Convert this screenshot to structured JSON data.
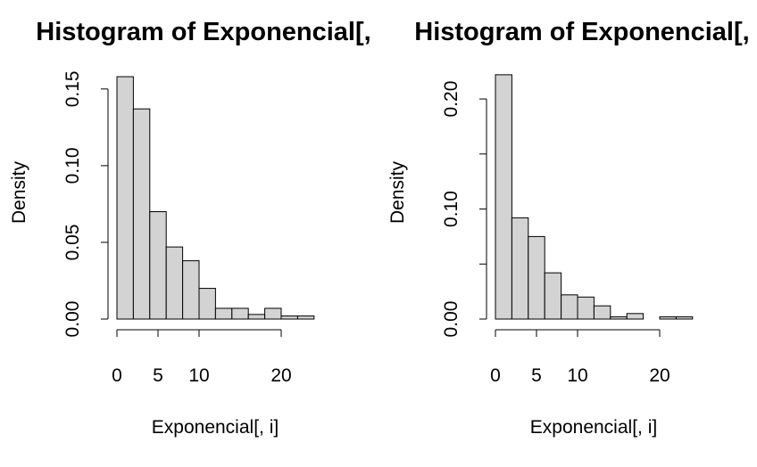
{
  "chart_data": [
    {
      "type": "bar",
      "subtype": "histogram",
      "title": "Histogram of Exponencial[,",
      "xlabel": "Exponencial[, i]",
      "ylabel": "Density",
      "bin_edges": [
        0,
        2,
        4,
        6,
        8,
        10,
        12,
        14,
        16,
        18,
        20,
        22,
        24
      ],
      "values": [
        0.158,
        0.137,
        0.07,
        0.047,
        0.038,
        0.02,
        0.007,
        0.007,
        0.003,
        0.007,
        0.002,
        0.002
      ],
      "xticks": [
        0,
        5,
        10,
        20
      ],
      "xtick_labels": [
        "0",
        "5",
        "10",
        "20"
      ],
      "yticks": [
        0.0,
        0.05,
        0.1,
        0.15
      ],
      "ytick_labels": [
        "0.00",
        "0.05",
        "0.10",
        "0.15"
      ],
      "ylim": [
        0,
        0.165
      ],
      "grid": false
    },
    {
      "type": "bar",
      "subtype": "histogram",
      "title": "Histogram of Exponencial[,",
      "xlabel": "Exponencial[, i]",
      "ylabel": "Density",
      "bin_edges": [
        0,
        2,
        4,
        6,
        8,
        10,
        12,
        14,
        16,
        18,
        20,
        22,
        24
      ],
      "values": [
        0.222,
        0.092,
        0.075,
        0.042,
        0.022,
        0.02,
        0.012,
        0.002,
        0.005,
        0.0,
        0.002,
        0.002
      ],
      "xticks": [
        0,
        5,
        10,
        20
      ],
      "xtick_labels": [
        "0",
        "5",
        "10",
        "20"
      ],
      "yticks": [
        0.0,
        0.05,
        0.1,
        0.15,
        0.2
      ],
      "ytick_labels": [
        "0.00",
        "",
        "0.10",
        "",
        "0.20"
      ],
      "ylim": [
        0,
        0.23
      ],
      "grid": false
    }
  ]
}
